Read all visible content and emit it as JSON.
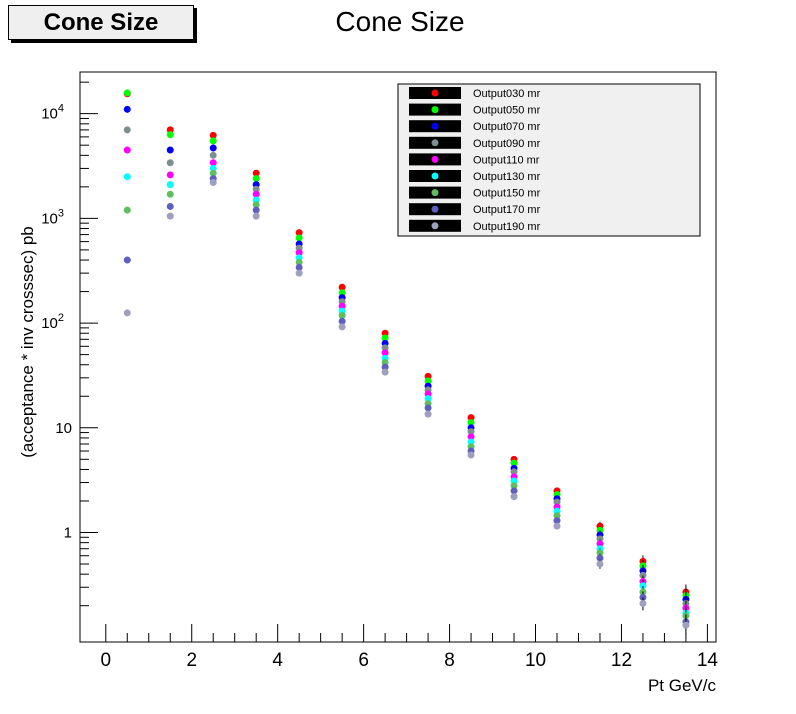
{
  "stat_box_label": "Cone Size",
  "chart_data": {
    "type": "scatter",
    "title": "Cone Size",
    "xlabel": "Pt GeV/c",
    "ylabel": "(acceptance * inv crosssec) pb",
    "xlim": [
      -0.6,
      14.2
    ],
    "ylim": [
      0.09,
      25000
    ],
    "yscale": "log",
    "xticks": [
      0,
      2,
      4,
      6,
      8,
      10,
      12,
      14
    ],
    "yticks": [
      {
        "value": 1,
        "label": "1"
      },
      {
        "value": 10,
        "label": "10"
      },
      {
        "value": 100,
        "label": "10",
        "exp": "2"
      },
      {
        "value": 1000,
        "label": "10",
        "exp": "3"
      },
      {
        "value": 10000,
        "label": "10",
        "exp": "4"
      }
    ],
    "grid": false,
    "legend_position": "top-right",
    "x": [
      0.5,
      1.5,
      2.5,
      3.5,
      4.5,
      5.5,
      6.5,
      7.5,
      8.5,
      9.5,
      10.5,
      11.5,
      12.5,
      13.5
    ],
    "series": [
      {
        "name": "Output030 mr",
        "color": "#ff0000",
        "values": [
          15500,
          7000,
          6200,
          2700,
          730,
          220,
          80,
          31,
          12.5,
          5.0,
          2.5,
          1.15,
          0.53,
          0.27
        ]
      },
      {
        "name": "Output050 mr",
        "color": "#00ff00",
        "values": [
          15800,
          6300,
          5500,
          2400,
          650,
          195,
          72,
          28,
          11.2,
          4.6,
          2.3,
          1.05,
          0.48,
          0.25
        ]
      },
      {
        "name": "Output070 mr",
        "color": "#0000ff",
        "values": [
          11000,
          4500,
          4700,
          2100,
          570,
          175,
          64,
          25,
          10.0,
          4.1,
          2.1,
          0.95,
          0.43,
          0.23
        ]
      },
      {
        "name": "Output090 mr",
        "color": "#7f8f8f",
        "values": [
          7000,
          3400,
          4000,
          1900,
          520,
          160,
          58,
          23,
          9.2,
          3.8,
          1.95,
          0.87,
          0.39,
          0.21
        ]
      },
      {
        "name": "Output110 mr",
        "color": "#ff00ff",
        "values": [
          4500,
          2600,
          3400,
          1700,
          470,
          145,
          52,
          21,
          8.2,
          3.4,
          1.75,
          0.78,
          0.34,
          0.19
        ]
      },
      {
        "name": "Output130 mr",
        "color": "#00ffff",
        "values": [
          2500,
          2100,
          3000,
          1500,
          420,
          130,
          46,
          19,
          7.3,
          3.1,
          1.6,
          0.7,
          0.31,
          0.17
        ]
      },
      {
        "name": "Output150 mr",
        "color": "#5fbf5f",
        "values": [
          1200,
          1700,
          2700,
          1350,
          380,
          118,
          42,
          17,
          6.6,
          2.8,
          1.45,
          0.64,
          0.27,
          0.16
        ]
      },
      {
        "name": "Output170 mr",
        "color": "#5f5fbf",
        "values": [
          400,
          1300,
          2400,
          1200,
          340,
          104,
          38,
          15.5,
          6.0,
          2.5,
          1.3,
          0.57,
          0.24,
          0.14
        ]
      },
      {
        "name": "Output190 mr",
        "color": "#9f9fbf",
        "values": [
          125,
          1050,
          2200,
          1050,
          300,
          92,
          34,
          13.5,
          5.5,
          2.2,
          1.15,
          0.5,
          0.21,
          0.13
        ]
      }
    ]
  }
}
